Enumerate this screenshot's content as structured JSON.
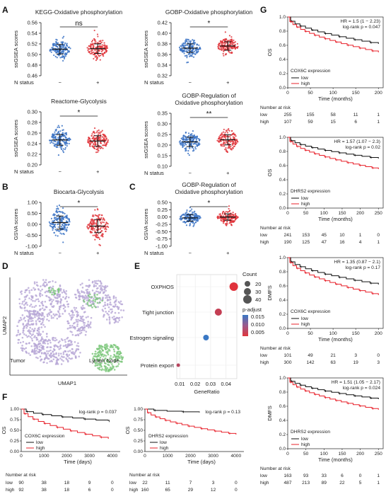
{
  "panel_labels": [
    "A",
    "B",
    "C",
    "D",
    "E",
    "F",
    "G"
  ],
  "scatter_panels": [
    {
      "id": "kegg",
      "title": [
        "KEGG-Oxidative phosphorylation"
      ],
      "ylabel": "ssGSEA scores",
      "yticks": [
        "0.46",
        "0.48",
        "0.50",
        "0.52",
        "0.54",
        "0.56"
      ],
      "ylim": [
        0.46,
        0.56
      ],
      "low_mean": 0.51,
      "low_sd": 0.009,
      "high_mean": 0.511,
      "high_sd": 0.009,
      "sig": "ns",
      "xlabel": "N status",
      "xticks": [
        "−",
        "+"
      ]
    },
    {
      "id": "gobp_ox",
      "title": [
        "GOBP-Oxidative phosphorylation"
      ],
      "ylabel": "ssGSEA scores",
      "yticks": [
        "0.32",
        "0.34",
        "0.36",
        "0.38",
        "0.40",
        "0.42"
      ],
      "ylim": [
        0.32,
        0.42
      ],
      "low_mean": 0.372,
      "low_sd": 0.008,
      "high_mean": 0.376,
      "high_sd": 0.008,
      "sig": "*",
      "xlabel": "N status",
      "xticks": [
        "−",
        "+"
      ]
    },
    {
      "id": "reactome",
      "title": [
        "Reactome-Glycolysis"
      ],
      "ylabel": "ssGSEA scores",
      "yticks": [
        "0.20",
        "0.22",
        "0.24",
        "0.26",
        "0.28",
        "0.30"
      ],
      "ylim": [
        0.2,
        0.3
      ],
      "low_mean": 0.247,
      "low_sd": 0.01,
      "high_mean": 0.245,
      "high_sd": 0.01,
      "sig": "*",
      "xlabel": "N status",
      "xticks": [
        "−",
        "+"
      ]
    },
    {
      "id": "gobp_reg",
      "title": [
        "GOBP-Regulation of",
        "Oxidative phosphorylation"
      ],
      "ylabel": "ssGSEA scores",
      "yticks": [
        "0.10",
        "0.15",
        "0.20",
        "0.25",
        "0.30",
        "0.35"
      ],
      "ylim": [
        0.1,
        0.35
      ],
      "low_mean": 0.215,
      "low_sd": 0.022,
      "high_mean": 0.225,
      "high_sd": 0.024,
      "sig": "**",
      "xlabel": "N status",
      "xticks": [
        "−",
        "+"
      ]
    },
    {
      "id": "biocarta",
      "title": [
        "Biocarta-Glycolysis"
      ],
      "ylabel": "GSVA scores",
      "yticks": [
        "-1.00",
        "-0.50",
        "0.00",
        "0.50",
        "1.00"
      ],
      "ylim": [
        -1.0,
        1.0
      ],
      "low_mean": 0.08,
      "low_sd": 0.3,
      "high_mean": -0.08,
      "high_sd": 0.3,
      "sig": "*",
      "xlabel": "N status",
      "xticks": [
        "−",
        "+"
      ]
    },
    {
      "id": "gsva_reg",
      "title": [
        "GOBP-Regulation of",
        "Oxidative phosphorylation"
      ],
      "ylabel": "GSVA scores",
      "yticks": [
        "-1.00",
        "-0.75",
        "-0.50",
        "-0.25",
        "0.00",
        "0.25",
        "0.50"
      ],
      "ylim": [
        -1.0,
        0.5
      ],
      "low_mean": -0.03,
      "low_sd": 0.11,
      "high_mean": 0.0,
      "high_sd": 0.11,
      "sig": "*",
      "xlabel": "N status",
      "xticks": [
        "−",
        "+"
      ]
    }
  ],
  "umap": {
    "xlabel": "UMAP1",
    "ylabel": "UMAP2",
    "labels": [
      "Tumor",
      "Lymph Node"
    ]
  },
  "dotplot": {
    "type": "scatter",
    "categories": [
      "OXPHOS",
      "Tight junction",
      "Estrogen signaling",
      "Protein export"
    ],
    "gene_ratio": [
      0.045,
      0.035,
      0.027,
      0.009
    ],
    "count": [
      40,
      30,
      20,
      5
    ],
    "p_adjust": [
      0.003,
      0.005,
      0.015,
      0.006
    ],
    "xlabel": "GeneRatio",
    "xticks": [
      "0.01",
      "0.02",
      "0.03",
      "0.04"
    ],
    "legend_count_title": "Count",
    "legend_count": [
      "20",
      "30",
      "40"
    ],
    "legend_p_title": "p-adjust",
    "legend_p": [
      "0.015",
      "0.010",
      "0.005"
    ]
  },
  "km_f": [
    {
      "id": "f1",
      "pval": "log-rank p = 0.037",
      "legend_title": "COX6C expression",
      "ylabel": "OS",
      "xlabel": "Time (days)",
      "xticks": [
        "0",
        "1000",
        "2000",
        "3000",
        "4000"
      ],
      "risk_low": [
        "90",
        "38",
        "18",
        "9",
        "0"
      ],
      "risk_high": [
        "92",
        "38",
        "18",
        "6",
        "0"
      ]
    },
    {
      "id": "f2",
      "pval": "log-rank p = 0.13",
      "legend_title": "DHRS2 expression",
      "ylabel": "OS",
      "xlabel": "Time (days)",
      "xticks": [
        "0",
        "1000",
        "2000",
        "3000",
        "4000"
      ],
      "risk_low": [
        "22",
        "11",
        "7",
        "3",
        "0"
      ],
      "risk_high": [
        "160",
        "65",
        "29",
        "12",
        "0"
      ]
    }
  ],
  "km_g": [
    {
      "id": "g1",
      "hr": "HR = 1.5 (1 − 2.23)",
      "pval": "log-rank p = 0.047",
      "legend_title": "COX6C expression",
      "ylabel": "OS",
      "xlabel": "Time (months)",
      "xticks": [
        "0",
        "50",
        "100",
        "150",
        "200"
      ],
      "risk_low": [
        "255",
        "155",
        "58",
        "11",
        "1"
      ],
      "risk_high": [
        "107",
        "59",
        "15",
        "6",
        "1"
      ]
    },
    {
      "id": "g2",
      "hr": "HR = 1.57 (1.07 − 2.3)",
      "pval": "log-rank p = 0.02",
      "legend_title": "DHRS2 expression",
      "ylabel": "OS",
      "xlabel": "Time (months)",
      "xticks": [
        "0",
        "50",
        "100",
        "150",
        "200",
        "250"
      ],
      "risk_low": [
        "241",
        "153",
        "45",
        "10",
        "1",
        "0"
      ],
      "risk_high": [
        "190",
        "125",
        "47",
        "16",
        "4",
        "1"
      ]
    },
    {
      "id": "g3",
      "hr": "HR = 1.35 (0.87 − 2.1)",
      "pval": "log-rank p = 0.17",
      "legend_title": "COX6C expression",
      "ylabel": "DMFS",
      "xlabel": "Time (months)",
      "xticks": [
        "0",
        "50",
        "100",
        "150",
        "200"
      ],
      "risk_low": [
        "101",
        "49",
        "21",
        "3",
        "0"
      ],
      "risk_high": [
        "300",
        "142",
        "63",
        "19",
        "3"
      ]
    },
    {
      "id": "g4",
      "hr": "HR = 1.51 (1.05 − 2.17)",
      "pval": "log-rank p = 0.024",
      "legend_title": "DHRS2 expression",
      "ylabel": "DMFS",
      "xlabel": "Time (months)",
      "xticks": [
        "0",
        "50",
        "100",
        "150",
        "200",
        "250"
      ],
      "risk_low": [
        "163",
        "93",
        "33",
        "6",
        "0",
        "1"
      ],
      "risk_high": [
        "487",
        "213",
        "89",
        "22",
        "5",
        "1"
      ]
    }
  ],
  "km_common": {
    "low_label": "low",
    "high_label": "high",
    "risk_title": "Number at risk",
    "g_yticks": [
      "0.0",
      "0.2",
      "0.4",
      "0.6",
      "0.8",
      "1.0"
    ],
    "f_yticks": [
      "0.00",
      "0.25",
      "0.50",
      "0.75",
      "1.00"
    ]
  },
  "colors": {
    "low_blue": "#3a72c4",
    "high_red": "#e0363c",
    "km_low": "#111111",
    "km_high": "#e8202a",
    "umap_tumor": "#b6a6d6",
    "umap_ln": "#7cc77a"
  }
}
